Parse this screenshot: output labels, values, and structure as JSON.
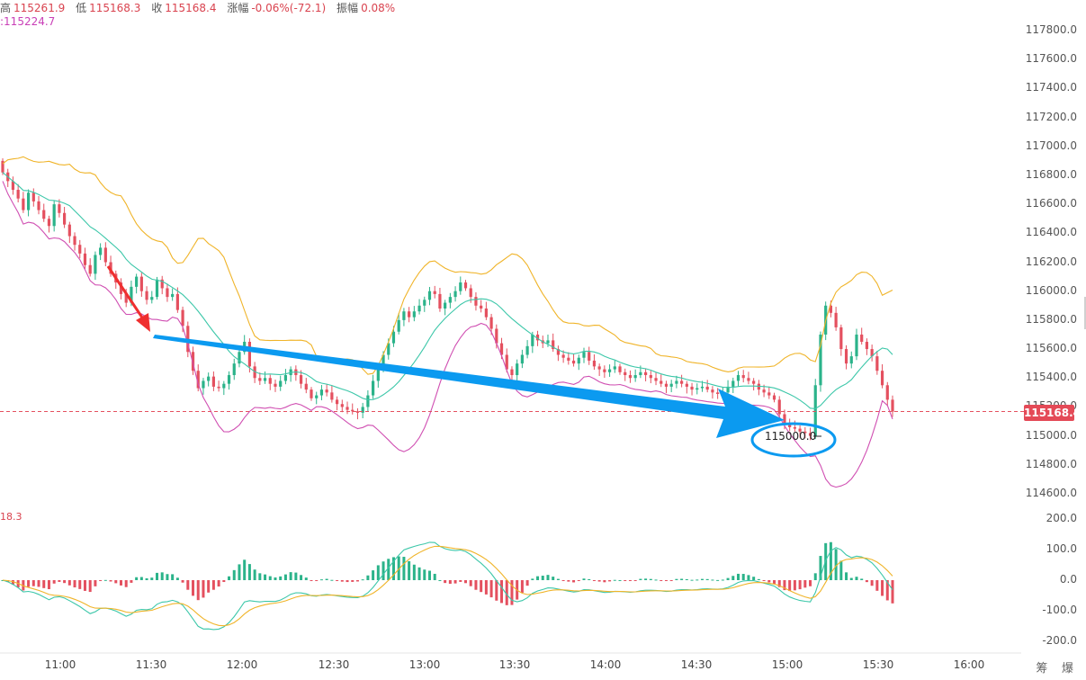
{
  "header": {
    "high_label": "高",
    "high_value": "115261.9",
    "low_label": "低",
    "low_value": "115168.3",
    "close_label": "收",
    "close_value": "115168.4",
    "change_label": "涨幅",
    "change_value": "-0.06%(-72.1)",
    "amplitude_label": "振幅",
    "amplitude_value": "0.08%",
    "ma_text": ":115224.7"
  },
  "macd_header": "18.3",
  "corner_text": "筹 爆",
  "colors": {
    "up": "#2bb38a",
    "down": "#e4505f",
    "band_upper": "#f0b429",
    "band_mid": "#3cc7a9",
    "band_lower": "#d04fb2",
    "arrow_blue": "#0b9af0",
    "arrow_red": "#ef2f2f",
    "price_tag": "#e44a57"
  },
  "chart_data": [
    {
      "type": "candlestick",
      "title": "",
      "x_ticks": [
        "11:00",
        "11:30",
        "12:00",
        "12:30",
        "13:00",
        "13:30",
        "14:00",
        "14:30",
        "15:00",
        "15:30",
        "16:00"
      ],
      "y_ticks": [
        "117800.0",
        "117600.0",
        "117400.0",
        "117200.0",
        "117000.0",
        "116800.0",
        "116600.0",
        "116400.0",
        "116200.0",
        "116000.0",
        "115800.0",
        "115600.0",
        "115400.0",
        "115200.0",
        "115000.0",
        "114800.0",
        "114600.0"
      ],
      "ylim": [
        114550,
        117880
      ],
      "current_price": "115168.4",
      "annotation": "115000.0",
      "close_series": [
        116820,
        116760,
        116700,
        116640,
        116560,
        116680,
        116620,
        116560,
        116500,
        116450,
        116600,
        116540,
        116460,
        116380,
        116320,
        116260,
        116180,
        116120,
        116250,
        116300,
        116200,
        116120,
        116060,
        115980,
        115920,
        116030,
        116100,
        116000,
        115940,
        115960,
        116080,
        116020,
        115960,
        115980,
        115870,
        115760,
        115580,
        115450,
        115330,
        115380,
        115410,
        115340,
        115330,
        115360,
        115420,
        115500,
        115580,
        115650,
        115480,
        115400,
        115380,
        115400,
        115360,
        115340,
        115380,
        115420,
        115460,
        115420,
        115360,
        115320,
        115260,
        115280,
        115320,
        115300,
        115250,
        115220,
        115200,
        115180,
        115170,
        115160,
        115200,
        115280,
        115380,
        115480,
        115560,
        115640,
        115720,
        115800,
        115860,
        115820,
        115860,
        115900,
        115940,
        116000,
        115980,
        115880,
        115920,
        115960,
        116000,
        116060,
        116020,
        115960,
        115900,
        115880,
        115820,
        115740,
        115640,
        115560,
        115460,
        115420,
        115500,
        115560,
        115620,
        115700,
        115660,
        115640,
        115660,
        115600,
        115560,
        115540,
        115520,
        115500,
        115540,
        115580,
        115520,
        115480,
        115460,
        115440,
        115460,
        115480,
        115440,
        115420,
        115400,
        115420,
        115440,
        115420,
        115400,
        115380,
        115360,
        115340,
        115360,
        115380,
        115360,
        115340,
        115320,
        115330,
        115340,
        115320,
        115300,
        115290,
        115300,
        115340,
        115380,
        115420,
        115400,
        115380,
        115360,
        115320,
        115300,
        115280,
        115250,
        115150,
        115080,
        115060,
        115050,
        115030,
        115020,
        115000,
        115350,
        115700,
        115900,
        115850,
        115750,
        115600,
        115500,
        115550,
        115700,
        115650,
        115600,
        115550,
        115450,
        115350,
        115250,
        115168
      ]
    },
    {
      "type": "macd",
      "title": "",
      "y_ticks": [
        "200.0",
        "100.0",
        "0.0",
        "-100.0",
        "-200.0"
      ],
      "ylim": [
        -230,
        230
      ]
    }
  ]
}
